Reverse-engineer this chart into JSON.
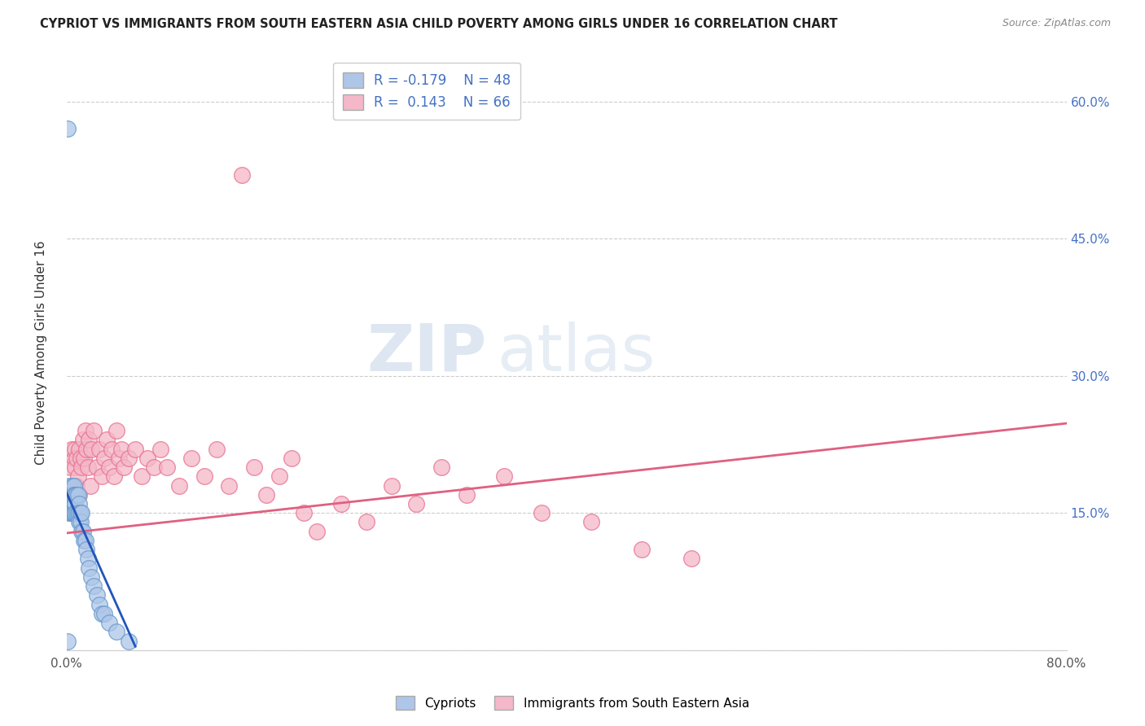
{
  "title": "CYPRIOT VS IMMIGRANTS FROM SOUTH EASTERN ASIA CHILD POVERTY AMONG GIRLS UNDER 16 CORRELATION CHART",
  "source": "Source: ZipAtlas.com",
  "ylabel": "Child Poverty Among Girls Under 16",
  "xlim": [
    0.0,
    0.8
  ],
  "ylim": [
    0.0,
    0.65
  ],
  "xticks": [
    0.0,
    0.1,
    0.2,
    0.3,
    0.4,
    0.5,
    0.6,
    0.7,
    0.8
  ],
  "yticks_right": [
    0.0,
    0.15,
    0.3,
    0.45,
    0.6
  ],
  "ytick_right_labels": [
    "",
    "15.0%",
    "30.0%",
    "45.0%",
    "60.0%"
  ],
  "cypriot_color": "#aec6e8",
  "immigrant_color": "#f4b8c8",
  "cypriot_edge_color": "#6699CC",
  "immigrant_edge_color": "#e87090",
  "line_color_cypriot": "#2255BB",
  "line_color_immigrant": "#e06080",
  "R_cypriot": -0.179,
  "N_cypriot": 48,
  "R_immigrant": 0.143,
  "N_immigrant": 66,
  "legend_label_cypriot": "Cypriots",
  "legend_label_immigrant": "Immigrants from South Eastern Asia",
  "watermark_zip": "ZIP",
  "watermark_atlas": "atlas",
  "background_color": "#ffffff",
  "grid_color": "#cccccc",
  "cypriot_scatter_x": [
    0.001,
    0.001,
    0.002,
    0.002,
    0.002,
    0.003,
    0.003,
    0.003,
    0.004,
    0.004,
    0.004,
    0.005,
    0.005,
    0.005,
    0.006,
    0.006,
    0.006,
    0.006,
    0.007,
    0.007,
    0.007,
    0.008,
    0.008,
    0.009,
    0.009,
    0.01,
    0.01,
    0.01,
    0.011,
    0.011,
    0.012,
    0.012,
    0.013,
    0.014,
    0.015,
    0.016,
    0.017,
    0.018,
    0.02,
    0.022,
    0.024,
    0.026,
    0.028,
    0.03,
    0.034,
    0.04,
    0.05,
    0.001
  ],
  "cypriot_scatter_y": [
    0.57,
    0.16,
    0.18,
    0.17,
    0.15,
    0.17,
    0.16,
    0.15,
    0.17,
    0.16,
    0.15,
    0.18,
    0.17,
    0.15,
    0.18,
    0.17,
    0.16,
    0.15,
    0.17,
    0.16,
    0.15,
    0.17,
    0.15,
    0.17,
    0.15,
    0.16,
    0.15,
    0.14,
    0.15,
    0.14,
    0.15,
    0.13,
    0.13,
    0.12,
    0.12,
    0.11,
    0.1,
    0.09,
    0.08,
    0.07,
    0.06,
    0.05,
    0.04,
    0.04,
    0.03,
    0.02,
    0.01,
    0.01
  ],
  "immigrant_scatter_x": [
    0.002,
    0.003,
    0.004,
    0.005,
    0.006,
    0.006,
    0.007,
    0.007,
    0.008,
    0.008,
    0.009,
    0.01,
    0.01,
    0.011,
    0.012,
    0.013,
    0.014,
    0.015,
    0.016,
    0.017,
    0.018,
    0.019,
    0.02,
    0.022,
    0.024,
    0.026,
    0.028,
    0.03,
    0.032,
    0.034,
    0.036,
    0.038,
    0.04,
    0.042,
    0.044,
    0.046,
    0.05,
    0.055,
    0.06,
    0.065,
    0.07,
    0.075,
    0.08,
    0.09,
    0.1,
    0.11,
    0.12,
    0.13,
    0.14,
    0.15,
    0.16,
    0.17,
    0.18,
    0.19,
    0.2,
    0.22,
    0.24,
    0.26,
    0.28,
    0.3,
    0.32,
    0.35,
    0.38,
    0.42,
    0.46,
    0.5
  ],
  "immigrant_scatter_y": [
    0.17,
    0.2,
    0.22,
    0.18,
    0.21,
    0.17,
    0.2,
    0.22,
    0.21,
    0.18,
    0.19,
    0.22,
    0.17,
    0.21,
    0.2,
    0.23,
    0.21,
    0.24,
    0.22,
    0.2,
    0.23,
    0.18,
    0.22,
    0.24,
    0.2,
    0.22,
    0.19,
    0.21,
    0.23,
    0.2,
    0.22,
    0.19,
    0.24,
    0.21,
    0.22,
    0.2,
    0.21,
    0.22,
    0.19,
    0.21,
    0.2,
    0.22,
    0.2,
    0.18,
    0.21,
    0.19,
    0.22,
    0.18,
    0.52,
    0.2,
    0.17,
    0.19,
    0.21,
    0.15,
    0.13,
    0.16,
    0.14,
    0.18,
    0.16,
    0.2,
    0.17,
    0.19,
    0.15,
    0.14,
    0.11,
    0.1
  ],
  "imm_trend_x0": 0.0,
  "imm_trend_x1": 0.8,
  "imm_trend_y0": 0.128,
  "imm_trend_y1": 0.248,
  "cyp_trend_x0": 0.0,
  "cyp_trend_x1": 0.055,
  "cyp_trend_y0": 0.172,
  "cyp_trend_y1": 0.004
}
